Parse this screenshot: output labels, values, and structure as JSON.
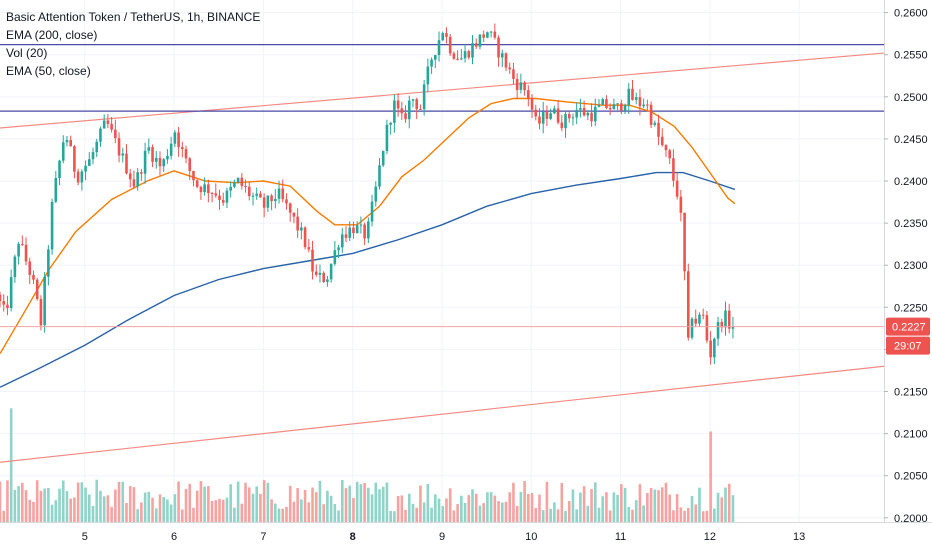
{
  "chart_data": {
    "type": "candlestick",
    "title": "Basic Attention Token / TetherUS, 1h, BINANCE",
    "indicators": [
      "EMA (200, close)",
      "Vol (20)",
      "EMA (50, close)"
    ],
    "ylim": [
      0.1995,
      0.2615
    ],
    "y_ticks": [
      "0.2600",
      "0.2550",
      "0.2500",
      "0.2450",
      "0.2400",
      "0.2350",
      "0.2300",
      "0.2250",
      "0.2200",
      "0.2150",
      "0.2100",
      "0.2050",
      "0.2000"
    ],
    "x_ticks": [
      "5",
      "6",
      "7",
      "8",
      "9",
      "10",
      "11",
      "12",
      "13"
    ],
    "x_tick_days": [
      5,
      6,
      7,
      8,
      9,
      10,
      11,
      12,
      13
    ],
    "x_range": [
      4.05,
      13.95
    ],
    "current_price": "0.2227",
    "countdown": "29:07",
    "colors": {
      "up": "#26a69a",
      "down": "#ef5350",
      "up_volume": "#8fd3c9",
      "down_volume": "#f5a3a1",
      "ema200": "#2962a8",
      "ema50": "#f57c00",
      "horizontal_level": "#4a4aa8",
      "trendline": "#f28b82",
      "price_line": "#f5a3a1",
      "price_tag": "#ef5350"
    },
    "horizontal_levels": [
      0.2562,
      0.2483
    ],
    "trendlines": [
      {
        "from": [
          4.05,
          0.2463
        ],
        "to": [
          13.95,
          0.2552
        ]
      },
      {
        "from": [
          4.05,
          0.2066
        ],
        "to": [
          13.95,
          0.218
        ]
      }
    ],
    "price_path": [
      [
        4.05,
        0.2265
      ],
      [
        4.15,
        0.224
      ],
      [
        4.3,
        0.233
      ],
      [
        4.45,
        0.2285
      ],
      [
        4.55,
        0.2232
      ],
      [
        4.68,
        0.2375
      ],
      [
        4.82,
        0.246
      ],
      [
        4.95,
        0.2405
      ],
      [
        5.1,
        0.2425
      ],
      [
        5.28,
        0.247
      ],
      [
        5.45,
        0.243
      ],
      [
        5.6,
        0.2395
      ],
      [
        5.75,
        0.244
      ],
      [
        5.9,
        0.2415
      ],
      [
        6.05,
        0.246
      ],
      [
        6.18,
        0.242
      ],
      [
        6.3,
        0.2395
      ],
      [
        6.45,
        0.239
      ],
      [
        6.6,
        0.2378
      ],
      [
        6.75,
        0.24
      ],
      [
        6.9,
        0.2383
      ],
      [
        7.05,
        0.237
      ],
      [
        7.2,
        0.2385
      ],
      [
        7.35,
        0.236
      ],
      [
        7.5,
        0.233
      ],
      [
        7.62,
        0.2285
      ],
      [
        7.75,
        0.2285
      ],
      [
        7.9,
        0.2335
      ],
      [
        8.05,
        0.2345
      ],
      [
        8.2,
        0.2335
      ],
      [
        8.3,
        0.239
      ],
      [
        8.4,
        0.245
      ],
      [
        8.5,
        0.2492
      ],
      [
        8.6,
        0.247
      ],
      [
        8.7,
        0.25
      ],
      [
        8.8,
        0.2487
      ],
      [
        8.92,
        0.2545
      ],
      [
        9.05,
        0.258
      ],
      [
        9.15,
        0.2555
      ],
      [
        9.25,
        0.2545
      ],
      [
        9.4,
        0.2562
      ],
      [
        9.55,
        0.2578
      ],
      [
        9.7,
        0.255
      ],
      [
        9.85,
        0.252
      ],
      [
        10.0,
        0.2505
      ],
      [
        10.1,
        0.2465
      ],
      [
        10.25,
        0.2485
      ],
      [
        10.4,
        0.247
      ],
      [
        10.55,
        0.2485
      ],
      [
        10.7,
        0.2478
      ],
      [
        10.85,
        0.249
      ],
      [
        11.0,
        0.2485
      ],
      [
        11.12,
        0.2502
      ],
      [
        11.25,
        0.2492
      ],
      [
        11.32,
        0.2495
      ],
      [
        11.4,
        0.247
      ],
      [
        11.5,
        0.2442
      ],
      [
        11.6,
        0.242
      ],
      [
        11.65,
        0.2393
      ],
      [
        11.7,
        0.238
      ],
      [
        11.75,
        0.2305
      ],
      [
        11.8,
        0.2205
      ],
      [
        11.85,
        0.225
      ],
      [
        11.9,
        0.2225
      ],
      [
        11.95,
        0.225
      ],
      [
        12.0,
        0.2215
      ],
      [
        12.05,
        0.2195
      ],
      [
        12.1,
        0.222
      ],
      [
        12.2,
        0.224
      ],
      [
        12.28,
        0.2227
      ]
    ],
    "ema50": [
      [
        4.05,
        0.2195
      ],
      [
        4.3,
        0.224
      ],
      [
        4.6,
        0.2295
      ],
      [
        4.9,
        0.234
      ],
      [
        5.3,
        0.2378
      ],
      [
        5.7,
        0.24
      ],
      [
        6.0,
        0.2412
      ],
      [
        6.35,
        0.24
      ],
      [
        6.7,
        0.2398
      ],
      [
        7.0,
        0.24
      ],
      [
        7.3,
        0.2394
      ],
      [
        7.6,
        0.2364
      ],
      [
        7.8,
        0.2348
      ],
      [
        8.05,
        0.2348
      ],
      [
        8.3,
        0.237
      ],
      [
        8.55,
        0.2405
      ],
      [
        8.8,
        0.2425
      ],
      [
        9.05,
        0.245
      ],
      [
        9.3,
        0.2475
      ],
      [
        9.55,
        0.2492
      ],
      [
        9.8,
        0.2498
      ],
      [
        10.05,
        0.2498
      ],
      [
        10.4,
        0.2494
      ],
      [
        10.8,
        0.249
      ],
      [
        11.1,
        0.249
      ],
      [
        11.35,
        0.2482
      ],
      [
        11.6,
        0.2465
      ],
      [
        11.8,
        0.244
      ],
      [
        12.0,
        0.241
      ],
      [
        12.2,
        0.238
      ],
      [
        12.28,
        0.2373
      ]
    ],
    "ema200": [
      [
        4.05,
        0.2155
      ],
      [
        4.5,
        0.2178
      ],
      [
        5.0,
        0.2205
      ],
      [
        5.5,
        0.2236
      ],
      [
        6.0,
        0.2264
      ],
      [
        6.5,
        0.2283
      ],
      [
        7.0,
        0.2296
      ],
      [
        7.5,
        0.2305
      ],
      [
        8.0,
        0.2314
      ],
      [
        8.5,
        0.233
      ],
      [
        9.0,
        0.2348
      ],
      [
        9.5,
        0.237
      ],
      [
        10.0,
        0.2385
      ],
      [
        10.5,
        0.2395
      ],
      [
        11.0,
        0.2403
      ],
      [
        11.4,
        0.241
      ],
      [
        11.7,
        0.241
      ],
      [
        12.0,
        0.24
      ],
      [
        12.28,
        0.239
      ]
    ],
    "volume_spikes": [
      [
        4.18,
        0.027
      ],
      [
        12.0,
        0.0215
      ]
    ],
    "volume_base": 0.0085
  }
}
